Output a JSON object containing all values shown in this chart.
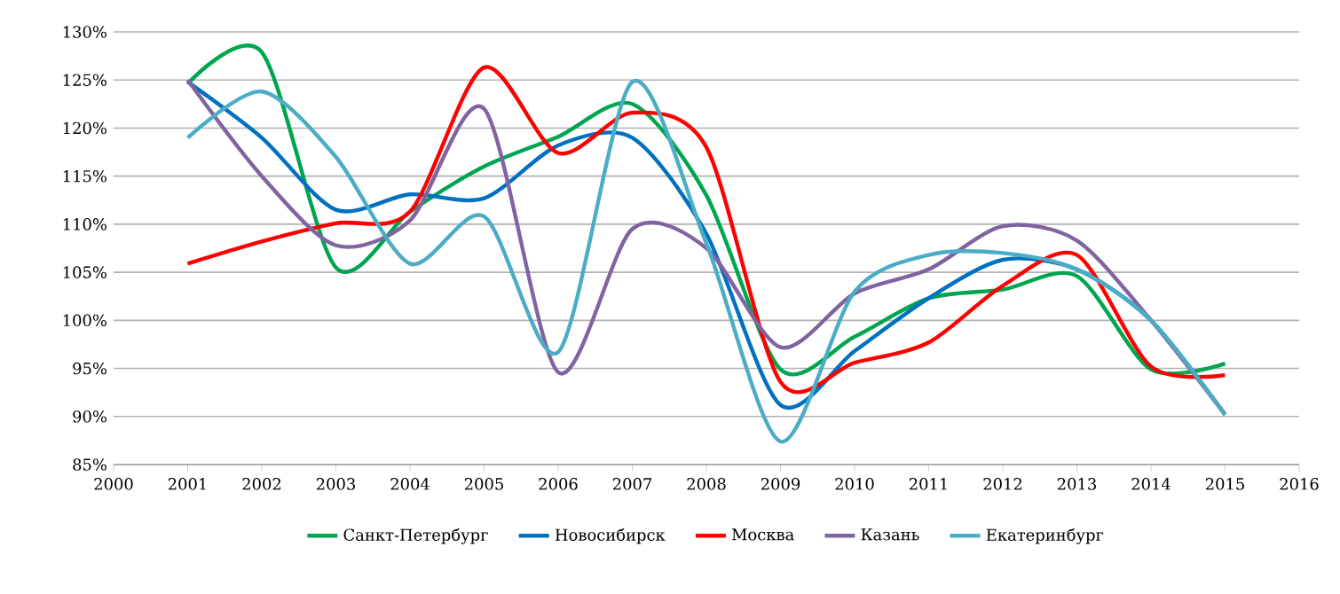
{
  "chart_data": {
    "type": "line",
    "x": [
      2001,
      2002,
      2003,
      2004,
      2005,
      2006,
      2007,
      2008,
      2009,
      2010,
      2011,
      2012,
      2013,
      2014,
      2015
    ],
    "series": [
      {
        "name": "Санкт-Петербург",
        "color": "#00a550",
        "values": [
          124.6,
          127.9,
          105.5,
          111.3,
          116,
          119.1,
          122.5,
          113,
          94.9,
          98.3,
          102.3,
          103.2,
          104.6,
          94.9,
          95.5
        ]
      },
      {
        "name": "Новосибирск",
        "color": "#0070c0",
        "values": [
          124.8,
          119,
          111.5,
          113.1,
          112.7,
          118.2,
          119,
          109,
          91.2,
          96.8,
          102.3,
          106.3,
          105.3,
          100,
          90.2
        ]
      },
      {
        "name": "Москва",
        "color": "#ff0000",
        "values": [
          105.9,
          108.2,
          110.1,
          111.3,
          126.3,
          117.4,
          121.6,
          118,
          93.6,
          95.6,
          97.7,
          103.6,
          106.8,
          95.2,
          94.3
        ]
      },
      {
        "name": "Казань",
        "color": "#8064a2",
        "values": [
          125,
          115,
          107.8,
          110.4,
          122,
          94.6,
          109.5,
          107.5,
          97.2,
          102.8,
          105.3,
          109.8,
          108.3,
          100,
          90.2
        ]
      },
      {
        "name": "Екатеринбург",
        "color": "#4bacc6",
        "values": [
          119,
          123.8,
          117,
          105.9,
          110.8,
          96.7,
          124.8,
          108,
          87.4,
          103,
          106.8,
          107,
          105.3,
          100,
          90.2
        ]
      }
    ],
    "xlim": [
      2000,
      2016
    ],
    "xticks": [
      2000,
      2001,
      2002,
      2003,
      2004,
      2005,
      2006,
      2007,
      2008,
      2009,
      2010,
      2011,
      2012,
      2013,
      2014,
      2015,
      2016
    ],
    "ylim": [
      85,
      130
    ],
    "yticks": [
      {
        "value": 85,
        "label": "85%"
      },
      {
        "value": 90,
        "label": "90%"
      },
      {
        "value": 95,
        "label": "95%"
      },
      {
        "value": 100,
        "label": "100%"
      },
      {
        "value": 105,
        "label": "105%"
      },
      {
        "value": 110,
        "label": "110%"
      },
      {
        "value": 115,
        "label": "115%"
      },
      {
        "value": 120,
        "label": "120%"
      },
      {
        "value": 125,
        "label": "125%"
      },
      {
        "value": 130,
        "label": "130%"
      }
    ],
    "grid": "y",
    "legend": "bottom",
    "marker": "none",
    "line_style": "solid"
  }
}
